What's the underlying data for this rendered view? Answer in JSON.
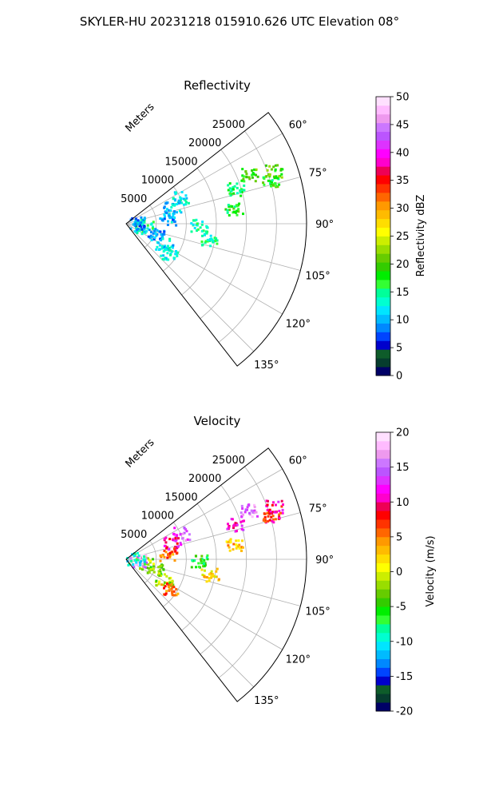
{
  "figure": {
    "suptitle": "SKYLER-HU  20231218  015910.626 UTC Elevation 08°"
  },
  "chart_data": [
    {
      "type": "polar-scatter",
      "title": "Reflectivity",
      "rlabel": "Meters",
      "rticks": [
        5000,
        10000,
        15000,
        20000,
        25000
      ],
      "rlim": [
        0,
        30000
      ],
      "theta_ticks_deg": [
        60,
        75,
        90,
        105,
        120,
        135
      ],
      "theta_range_deg": [
        52,
        142
      ],
      "theta_convention": "compass (0 = north, clockwise)",
      "grid": true,
      "colorbar": {
        "label": "Reflectivity dBZ",
        "min": 0,
        "max": 50,
        "ticks": [
          0,
          5,
          10,
          15,
          20,
          25,
          30,
          35,
          40,
          45,
          50
        ],
        "colors": [
          "#000066",
          "#063d2e",
          "#0e5c2a",
          "#0000cc",
          "#0044ff",
          "#0088ff",
          "#00bbff",
          "#00e5ff",
          "#00ffd0",
          "#00ff99",
          "#33ff33",
          "#00ee00",
          "#33cc00",
          "#66cc00",
          "#99dd00",
          "#ccee00",
          "#ffff00",
          "#ffdd00",
          "#ffbb00",
          "#ff9900",
          "#ff6600",
          "#ff3300",
          "#ff0000",
          "#ee0055",
          "#ff00cc",
          "#ff00ff",
          "#dd33ff",
          "#bb55ff",
          "#cc77ff",
          "#ee99ee",
          "#ffbbff",
          "#ffe0ff"
        ]
      },
      "echo_clusters": [
        {
          "range_m": 26000,
          "azimuth_deg": 70,
          "value": 20
        },
        {
          "range_m": 22000,
          "azimuth_deg": 68,
          "value": 19
        },
        {
          "range_m": 25000,
          "azimuth_deg": 74,
          "value": 18
        },
        {
          "range_m": 19000,
          "azimuth_deg": 72,
          "value": 16
        },
        {
          "range_m": 18000,
          "azimuth_deg": 82,
          "value": 18
        },
        {
          "range_m": 12000,
          "azimuth_deg": 91,
          "value": 14
        },
        {
          "range_m": 14000,
          "azimuth_deg": 100,
          "value": 14
        },
        {
          "range_m": 10000,
          "azimuth_deg": 64,
          "value": 12
        },
        {
          "range_m": 8000,
          "azimuth_deg": 70,
          "value": 11
        },
        {
          "range_m": 7000,
          "azimuth_deg": 82,
          "value": 10
        },
        {
          "range_m": 5000,
          "azimuth_deg": 110,
          "value": 9
        },
        {
          "range_m": 7000,
          "azimuth_deg": 118,
          "value": 12
        },
        {
          "range_m": 8500,
          "azimuth_deg": 125,
          "value": 13
        },
        {
          "range_m": 3000,
          "azimuth_deg": 100,
          "value": 14
        },
        {
          "range_m": 2000,
          "azimuth_deg": 95,
          "value": 13
        },
        {
          "range_m": 1500,
          "azimuth_deg": 80,
          "value": 8
        }
      ]
    },
    {
      "type": "polar-scatter",
      "title": "Velocity",
      "rlabel": "Meters",
      "rticks": [
        5000,
        10000,
        15000,
        20000,
        25000
      ],
      "rlim": [
        0,
        30000
      ],
      "theta_ticks_deg": [
        60,
        75,
        90,
        105,
        120,
        135
      ],
      "theta_range_deg": [
        52,
        142
      ],
      "theta_convention": "compass (0 = north, clockwise)",
      "grid": true,
      "colorbar": {
        "label": "Velocity (m/s)",
        "min": -20,
        "max": 20,
        "ticks": [
          -20,
          -15,
          -10,
          -5,
          0,
          5,
          10,
          15,
          20
        ],
        "colors": [
          "#000066",
          "#063d2e",
          "#0e5c2a",
          "#0000cc",
          "#0044ff",
          "#0088ff",
          "#00bbff",
          "#00e5ff",
          "#00ffd0",
          "#00ff99",
          "#33ff33",
          "#00ee00",
          "#33cc00",
          "#66cc00",
          "#99dd00",
          "#ccee00",
          "#ffff00",
          "#ffdd00",
          "#ffbb00",
          "#ff9900",
          "#ff6600",
          "#ff3300",
          "#ff0000",
          "#ee0055",
          "#ff00cc",
          "#ff00ff",
          "#dd33ff",
          "#bb55ff",
          "#cc77ff",
          "#ee99ee",
          "#ffbbff",
          "#ffe0ff"
        ]
      },
      "echo_clusters": [
        {
          "range_m": 26000,
          "azimuth_deg": 70,
          "value": 10
        },
        {
          "range_m": 22000,
          "azimuth_deg": 68,
          "value": 15
        },
        {
          "range_m": 25000,
          "azimuth_deg": 74,
          "value": 8
        },
        {
          "range_m": 19000,
          "azimuth_deg": 72,
          "value": 11
        },
        {
          "range_m": 18000,
          "azimuth_deg": 82,
          "value": 3
        },
        {
          "range_m": 12000,
          "azimuth_deg": 91,
          "value": -6
        },
        {
          "range_m": 14000,
          "azimuth_deg": 100,
          "value": 2
        },
        {
          "range_m": 10000,
          "azimuth_deg": 64,
          "value": 14
        },
        {
          "range_m": 8000,
          "azimuth_deg": 70,
          "value": 11
        },
        {
          "range_m": 7000,
          "azimuth_deg": 82,
          "value": 6
        },
        {
          "range_m": 5000,
          "azimuth_deg": 110,
          "value": -3
        },
        {
          "range_m": 7000,
          "azimuth_deg": 118,
          "value": -1
        },
        {
          "range_m": 8500,
          "azimuth_deg": 125,
          "value": 6
        },
        {
          "range_m": 3000,
          "azimuth_deg": 100,
          "value": -2
        },
        {
          "range_m": 2000,
          "azimuth_deg": 95,
          "value": 17
        },
        {
          "range_m": 1500,
          "azimuth_deg": 80,
          "value": -10
        }
      ]
    }
  ]
}
